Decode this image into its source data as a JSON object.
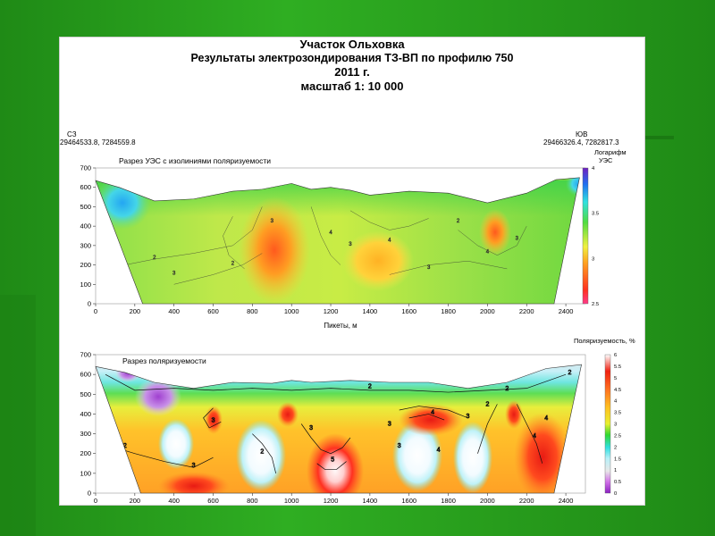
{
  "header": {
    "line1": "Участок Ольховка",
    "line2": "Результаты электрозондирования ТЗ-ВП по профилю 750",
    "line3": "2011 г.",
    "line4": "масштаб 1: 10 000"
  },
  "corners": {
    "left_label": "СЗ",
    "left_coords": "29464533.8, 7284559.8",
    "right_label": "ЮВ",
    "right_coords": "29466326.4, 7282817.3"
  },
  "colors": {
    "background": "#2a9a1e",
    "section_top_green": "#4cd13a",
    "high_red": "#e8281a",
    "low_blue": "#2bb7f0",
    "purple": "#a44fd2"
  },
  "chart_data": [
    {
      "type": "heatmap",
      "title": "Разрез УЭС с изолиниями поляризуемости",
      "xlabel": "Пикеты, м",
      "ylabel": "",
      "x_ticks": [
        "0",
        "200",
        "400",
        "600",
        "800",
        "1000",
        "1200",
        "1400",
        "1600",
        "1800",
        "2000",
        "2200",
        "2400"
      ],
      "y_ticks": [
        "0",
        "100",
        "200",
        "300",
        "400",
        "500",
        "600",
        "700"
      ],
      "xlim": [
        0,
        2500
      ],
      "ylim": [
        0,
        700
      ],
      "colorbar": {
        "title_line1": "Логарифм",
        "title_line2": "УЭС",
        "ticks": [
          "2.5",
          "3",
          "3.5",
          "4"
        ],
        "range": [
          2.5,
          4
        ]
      },
      "contour_labels": [
        "2",
        "2",
        "3",
        "4",
        "3",
        "2",
        "4",
        "3",
        "2",
        "3",
        "4",
        "3"
      ],
      "anomalies": [
        {
          "x": 120,
          "y": 560,
          "value": 3.6
        },
        {
          "x": 900,
          "y": 320,
          "value": 2.8
        },
        {
          "x": 1500,
          "y": 270,
          "value": 2.9
        },
        {
          "x": 2020,
          "y": 400,
          "value": 2.85
        },
        {
          "x": 2470,
          "y": 630,
          "value": 4.0
        }
      ]
    },
    {
      "type": "heatmap",
      "title": "Разрез поляризуемости",
      "xlabel": "",
      "ylabel": "",
      "x_ticks": [
        "0",
        "200",
        "400",
        "600",
        "800",
        "1000",
        "1200",
        "1400",
        "1600",
        "1800",
        "2000",
        "2200",
        "2400"
      ],
      "y_ticks": [
        "0",
        "100",
        "200",
        "300",
        "400",
        "500",
        "600",
        "700"
      ],
      "xlim": [
        0,
        2500
      ],
      "ylim": [
        0,
        700
      ],
      "colorbar": {
        "title": "Поляризуемость, %",
        "ticks": [
          "0",
          "0.5",
          "1",
          "1.5",
          "2",
          "2.5",
          "3",
          "3.5",
          "4",
          "4.5",
          "5",
          "5.5",
          "6"
        ],
        "range": [
          0,
          6
        ]
      },
      "contour_labels": [
        "2",
        "2",
        "2",
        "3",
        "3",
        "2",
        "4",
        "5",
        "2",
        "3",
        "4",
        "4",
        "3",
        "2",
        "4",
        "3",
        "2",
        "3"
      ],
      "anomalies": [
        {
          "x": 330,
          "y": 480,
          "value": 0.3
        },
        {
          "x": 560,
          "y": 60,
          "value": 4.5
        },
        {
          "x": 1210,
          "y": 100,
          "value": 5.5
        },
        {
          "x": 1720,
          "y": 380,
          "value": 4.5
        },
        {
          "x": 2230,
          "y": 170,
          "value": 5.0
        }
      ]
    }
  ]
}
